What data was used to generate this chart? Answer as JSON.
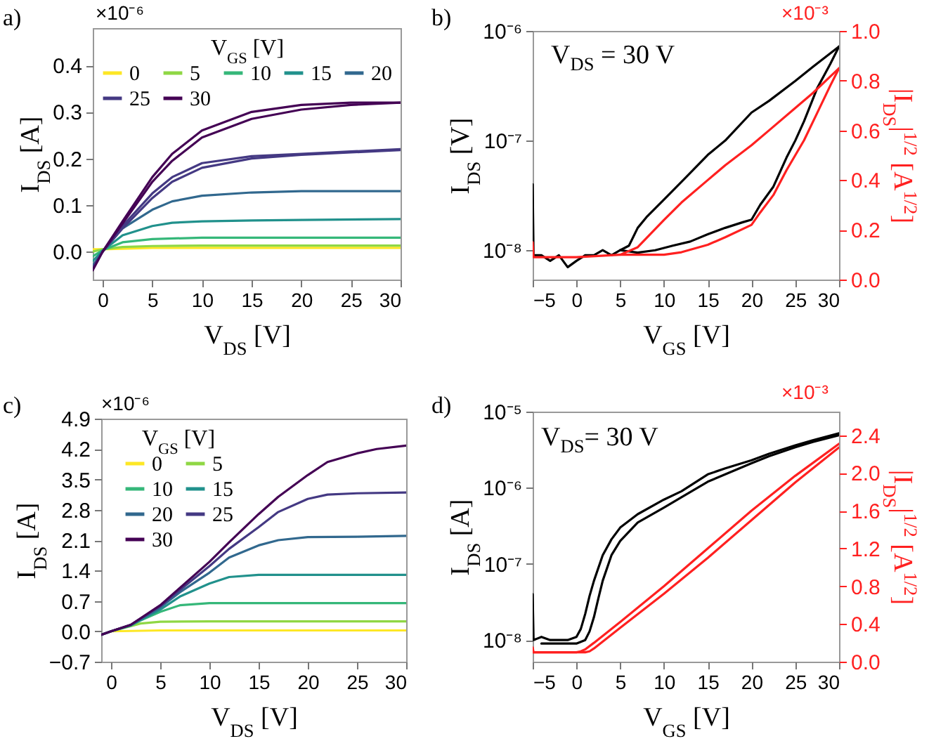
{
  "chart_data": [
    {
      "type": "line",
      "xlabel": "V$_{DS}$ [V]",
      "ylabel": "I$_{DS}$ [A]",
      "legend_title": "V$_{GS}$ [V]",
      "legend": "top left",
      "annotations": [
        "a)",
        "×10⁻⁶"
      ],
      "xlim": [
        -1,
        30
      ],
      "xticks": [
        0,
        5,
        10,
        15,
        20,
        25,
        30
      ],
      "ylim": [
        -0.06,
        0.48
      ],
      "yticks": [
        {
          "value": 0,
          "label": "0.0"
        },
        0.1,
        0.2,
        0.3,
        0.4
      ],
      "series": [
        {
          "name": "0",
          "color": "#fde725",
          "x": [
            -1,
            0,
            5,
            10,
            20,
            30
          ],
          "values": [
            0.005,
            0.005,
            0.008,
            0.008,
            0.008,
            0.008
          ]
        },
        {
          "name": "5",
          "color": "#8fd744",
          "x": [
            -1,
            0,
            2,
            5,
            10,
            20,
            30
          ],
          "values": [
            0.0,
            0.005,
            0.01,
            0.012,
            0.013,
            0.013,
            0.013
          ]
        },
        {
          "name": "10",
          "color": "#35b779",
          "x": [
            -1,
            0,
            2,
            5,
            10,
            15,
            20,
            30
          ],
          "values": [
            -0.01,
            0.003,
            0.02,
            0.027,
            0.03,
            0.03,
            0.03,
            0.03
          ]
        },
        {
          "name": "15",
          "color": "#21918c",
          "x": [
            -1,
            0,
            2,
            5,
            7,
            10,
            15,
            20,
            30
          ],
          "values": [
            -0.02,
            0.002,
            0.035,
            0.055,
            0.062,
            0.065,
            0.067,
            0.068,
            0.07
          ]
        },
        {
          "name": "20",
          "color": "#31688e",
          "x": [
            -1,
            0,
            2,
            5,
            7,
            10,
            15,
            20,
            25,
            30
          ],
          "values": [
            -0.03,
            0.001,
            0.05,
            0.09,
            0.108,
            0.12,
            0.127,
            0.13,
            0.13,
            0.13
          ]
        },
        {
          "name": "25",
          "color": "#443983",
          "x": [
            -1,
            0,
            2,
            5,
            7,
            10,
            15,
            20,
            25,
            30
          ],
          "values": [
            -0.035,
            0,
            0.055,
            0.125,
            0.16,
            0.19,
            0.205,
            0.21,
            0.215,
            0.22
          ]
        },
        {
          "color": "#443983",
          "x": [
            0,
            2,
            5,
            7,
            10,
            15,
            20,
            25,
            30
          ],
          "values": [
            0,
            0.05,
            0.115,
            0.15,
            0.18,
            0.2,
            0.208,
            0.213,
            0.218
          ]
        },
        {
          "name": "30",
          "color": "#440154",
          "x": [
            -1,
            0,
            2,
            5,
            7,
            10,
            15,
            20,
            25,
            30
          ],
          "values": [
            -0.04,
            0,
            0.065,
            0.16,
            0.21,
            0.26,
            0.3,
            0.315,
            0.32,
            0.32
          ]
        },
        {
          "color": "#440154",
          "x": [
            0,
            2,
            5,
            7,
            10,
            15,
            20,
            25,
            30
          ],
          "values": [
            0,
            0.06,
            0.15,
            0.195,
            0.245,
            0.285,
            0.305,
            0.315,
            0.32
          ]
        }
      ]
    },
    {
      "type": "line",
      "xlabel": "V$_{GS}$ [V]",
      "ylabel": "I$_{DS}$ [V]",
      "y2label": "|I$_{DS}$|$^{1/2}$ [A$^{1/2}$]",
      "log": "y",
      "annotations": [
        "b)",
        "V$_{DS}$ = 30 V",
        "×10⁻³"
      ],
      "xlim": [
        -5,
        30
      ],
      "xticks": [
        {
          "value": -5,
          "label": "−5"
        },
        0,
        5,
        10,
        15,
        20,
        25,
        30
      ],
      "ylim": [
        5.4e-09,
        1e-06
      ],
      "yticks": [
        {
          "value": 1e-08,
          "label": "10⁻⁸"
        },
        {
          "value": 1e-07,
          "label": "10⁻⁷"
        },
        {
          "value": 1e-06,
          "label": "10⁻⁶"
        }
      ],
      "y2lim": [
        0,
        1
      ],
      "y2ticks": [
        {
          "value": 0,
          "label": "0.0"
        },
        0.2,
        0.4,
        0.6,
        0.8,
        {
          "value": 1,
          "label": "1.0"
        }
      ],
      "series": [
        {
          "color": "#000000",
          "x": [
            -5,
            -4.9,
            -4,
            -3,
            -2,
            -1,
            0,
            1,
            2,
            3,
            4,
            5,
            6,
            7,
            8,
            10,
            12,
            15,
            17,
            20,
            22,
            25,
            27,
            30
          ],
          "values": [
            4e-08,
            9e-09,
            9e-09,
            8e-09,
            9e-09,
            7e-09,
            8e-09,
            9e-09,
            9e-09,
            1e-08,
            9e-09,
            1e-08,
            1.1e-08,
            1.6e-08,
            2e-08,
            2.9e-08,
            4.2e-08,
            7.4e-08,
            1e-07,
            1.8e-07,
            2.3e-07,
            3.5e-07,
            4.7e-07,
            7.2e-07
          ]
        },
        {
          "color": "#000000",
          "x": [
            5,
            7,
            9,
            11,
            13,
            15,
            17,
            19,
            20,
            21,
            22.5,
            24,
            25,
            26,
            27.5,
            29,
            30
          ],
          "values": [
            1e-08,
            9.5e-09,
            1e-08,
            1.1e-08,
            1.2e-08,
            1.4e-08,
            1.6e-08,
            1.8e-08,
            1.9e-08,
            2.6e-08,
            3.8e-08,
            7e-08,
            1e-07,
            1.5e-07,
            3e-07,
            5e-07,
            7.2e-07
          ]
        },
        {
          "color": "#ff2020",
          "axis": "y2",
          "x": [
            -5,
            -4.9,
            0,
            5,
            7,
            10,
            12,
            15,
            17,
            20,
            22,
            25,
            27,
            30
          ],
          "values": [
            0.15,
            0.09,
            0.09,
            0.1,
            0.13,
            0.24,
            0.31,
            0.4,
            0.46,
            0.54,
            0.6,
            0.69,
            0.75,
            0.85
          ]
        },
        {
          "color": "#ff2020",
          "axis": "y2",
          "x": [
            5,
            10,
            12,
            15,
            17,
            20,
            21,
            22.5,
            24,
            25,
            26,
            27.5,
            29,
            30
          ],
          "values": [
            0.1,
            0.1,
            0.11,
            0.14,
            0.17,
            0.22,
            0.27,
            0.34,
            0.44,
            0.5,
            0.56,
            0.67,
            0.78,
            0.85
          ]
        }
      ]
    },
    {
      "type": "line",
      "xlabel": "V$_{DS}$ [V]",
      "ylabel": "I$_{DS}$ [A]",
      "legend_title": "V$_{GS}$ [V]",
      "legend": "top left",
      "annotations": [
        "c)",
        "×10⁻⁶"
      ],
      "xlim": [
        -1,
        30
      ],
      "xticks": [
        0,
        5,
        10,
        15,
        20,
        25,
        30
      ],
      "ylim": [
        -0.7,
        4.9
      ],
      "yticks": [
        -0.7,
        {
          "value": 0,
          "label": "0.0"
        },
        0.7,
        1.4,
        2.1,
        2.8,
        3.5,
        4.2,
        4.9
      ],
      "series": [
        {
          "name": "0",
          "color": "#fde725",
          "x": [
            0,
            5,
            30
          ],
          "values": [
            0,
            0.02,
            0.02
          ]
        },
        {
          "name": "5",
          "color": "#8fd744",
          "x": [
            -1,
            0,
            2,
            3,
            5,
            10,
            30
          ],
          "values": [
            -0.08,
            0,
            0.12,
            0.18,
            0.22,
            0.23,
            0.23
          ]
        },
        {
          "name": "10",
          "color": "#35b779",
          "x": [
            -1,
            0,
            2,
            3,
            5,
            7,
            10,
            15,
            30
          ],
          "values": [
            -0.08,
            0,
            0.13,
            0.25,
            0.45,
            0.6,
            0.65,
            0.65,
            0.65
          ]
        },
        {
          "name": "15",
          "color": "#21918c",
          "x": [
            -1,
            0,
            2,
            5,
            7,
            10,
            12,
            15,
            20,
            30
          ],
          "values": [
            -0.08,
            0,
            0.14,
            0.5,
            0.8,
            1.1,
            1.25,
            1.3,
            1.3,
            1.3
          ]
        },
        {
          "name": "20",
          "color": "#31688e",
          "x": [
            -1,
            0,
            2,
            5,
            7,
            10,
            12,
            15,
            17,
            20,
            25,
            30
          ],
          "values": [
            -0.08,
            0,
            0.14,
            0.55,
            0.9,
            1.35,
            1.7,
            1.98,
            2.1,
            2.17,
            2.18,
            2.2
          ]
        },
        {
          "name": "25",
          "color": "#443983",
          "x": [
            -1,
            0,
            2,
            5,
            7,
            10,
            12,
            15,
            17,
            20,
            22,
            25,
            30
          ],
          "values": [
            -0.08,
            0,
            0.15,
            0.58,
            0.95,
            1.5,
            1.9,
            2.4,
            2.75,
            3.05,
            3.15,
            3.18,
            3.2
          ]
        },
        {
          "name": "30",
          "color": "#440154",
          "x": [
            -1,
            0,
            2,
            5,
            7,
            10,
            12,
            15,
            17,
            20,
            22,
            25,
            27,
            30
          ],
          "values": [
            -0.08,
            0,
            0.15,
            0.6,
            1.0,
            1.6,
            2.05,
            2.7,
            3.1,
            3.6,
            3.9,
            4.1,
            4.2,
            4.28
          ]
        }
      ]
    },
    {
      "type": "line",
      "xlabel": "V$_{GS}$ [V]",
      "ylabel": "I$_{DS}$ [A]",
      "y2label": "|I$_{DS}$|$^{1/2}$ [A$^{1/2}$]",
      "log": "y",
      "annotations": [
        "d)",
        "V$_{DS}$= 30 V",
        "×10⁻³"
      ],
      "xlim": [
        -5,
        30
      ],
      "xticks": [
        -5,
        0,
        5,
        10,
        15,
        20,
        25,
        30
      ],
      "ylim": [
        5.2e-09,
        1e-05
      ],
      "yticks": [
        {
          "value": 1e-08,
          "label": "10⁻⁸"
        },
        {
          "value": 1e-07,
          "label": "10⁻⁷"
        },
        {
          "value": 1e-06,
          "label": "10⁻⁶"
        },
        {
          "value": 1e-05,
          "label": "10⁻⁵"
        }
      ],
      "y2lim": [
        0,
        2.65
      ],
      "y2ticks": [
        {
          "value": 0,
          "label": "0.0"
        },
        0.4,
        0.8,
        1.2,
        1.6,
        {
          "value": 2,
          "label": "2.0"
        },
        2.4
      ],
      "series": [
        {
          "color": "#000000",
          "x": [
            -5,
            -4.9,
            -4,
            -3,
            -2,
            -1,
            0,
            0.5,
            1,
            1.5,
            2,
            3,
            4,
            5,
            7,
            10,
            12,
            15,
            17,
            20,
            22,
            25,
            27,
            30
          ],
          "values": [
            4e-08,
            1e-08,
            1.1e-08,
            1e-08,
            1e-08,
            1e-08,
            1.1e-08,
            1.4e-08,
            2.2e-08,
            3.8e-08,
            6e-08,
            1.3e-07,
            2.1e-07,
            3e-07,
            4.5e-07,
            7e-07,
            9e-07,
            1.5e-06,
            1.8e-06,
            2.3e-06,
            2.8e-06,
            3.6e-06,
            4.2e-06,
            5.2e-06
          ]
        },
        {
          "color": "#000000",
          "x": [
            -4,
            -2,
            0,
            1,
            1.5,
            2,
            2.5,
            3,
            4,
            5,
            7,
            10,
            12,
            15,
            17,
            20,
            22,
            25,
            27,
            30
          ],
          "values": [
            9e-09,
            9e-09,
            9e-09,
            1e-08,
            1.3e-08,
            2e-08,
            3.5e-08,
            6e-08,
            1.3e-07,
            2e-07,
            3.5e-07,
            5.5e-07,
            7.5e-07,
            1.2e-06,
            1.5e-06,
            2.1e-06,
            2.6e-06,
            3.4e-06,
            4e-06,
            4.9e-06
          ]
        },
        {
          "color": "#ff2020",
          "axis": "y2",
          "x": [
            -5,
            -4.9,
            0,
            0.5,
            1,
            2,
            5,
            10,
            15,
            20,
            25,
            30
          ],
          "values": [
            0.15,
            0.1,
            0.1,
            0.11,
            0.13,
            0.2,
            0.42,
            0.8,
            1.2,
            1.6,
            1.97,
            2.31
          ]
        },
        {
          "color": "#ff2020",
          "axis": "y2",
          "x": [
            -5,
            0,
            1,
            1.5,
            2,
            5,
            10,
            15,
            20,
            25,
            30
          ],
          "values": [
            0.1,
            0.1,
            0.1,
            0.11,
            0.14,
            0.36,
            0.72,
            1.1,
            1.5,
            1.9,
            2.27
          ]
        }
      ]
    }
  ]
}
